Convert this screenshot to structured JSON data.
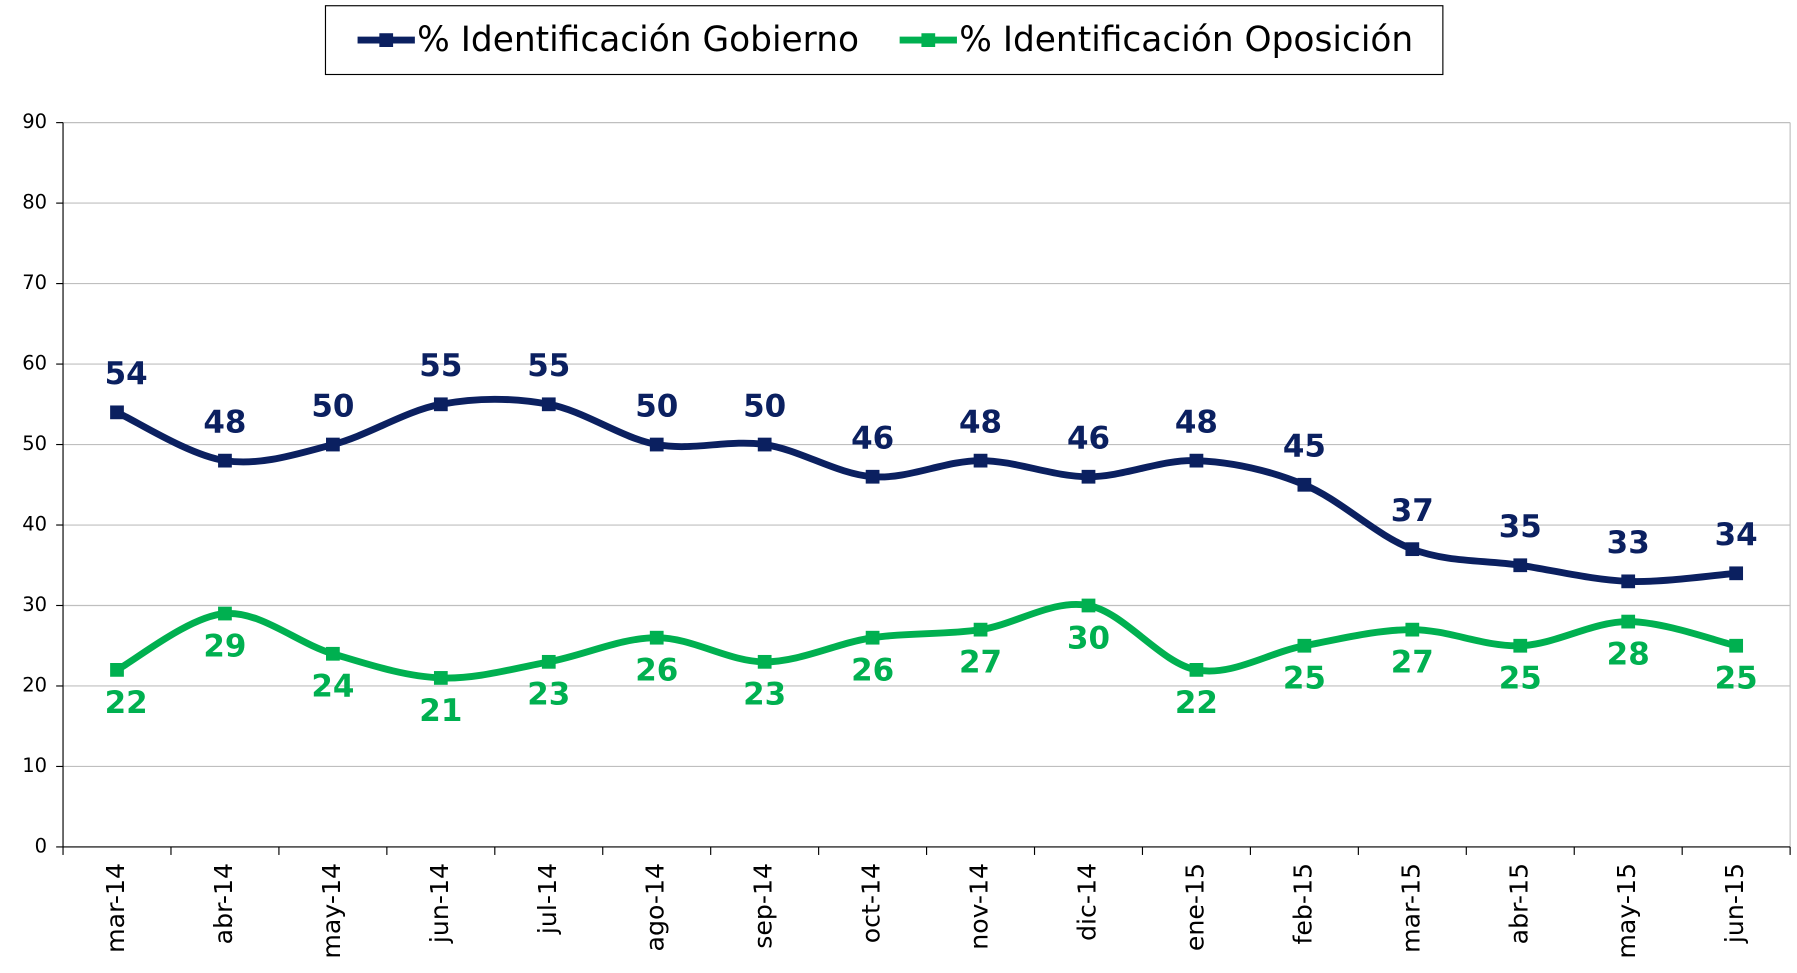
{
  "chart_data": {
    "type": "line",
    "categories": [
      "mar-14",
      "abr-14",
      "may-14",
      "jun-14",
      "jul-14",
      "ago-14",
      "sep-14",
      "oct-14",
      "nov-14",
      "dic-14",
      "ene-15",
      "feb-15",
      "mar-15",
      "abr-15",
      "may-15",
      "jun-15"
    ],
    "series": [
      {
        "name": "% Identificación Gobierno",
        "color": "#0b2060",
        "values": [
          54,
          48,
          50,
          55,
          55,
          50,
          50,
          46,
          48,
          46,
          48,
          45,
          37,
          35,
          33,
          34
        ]
      },
      {
        "name": "% Identificación Oposición",
        "color": "#00b050",
        "values": [
          22,
          29,
          24,
          21,
          23,
          26,
          23,
          26,
          27,
          30,
          22,
          25,
          27,
          25,
          28,
          25
        ]
      }
    ],
    "ylim": [
      0,
      90
    ],
    "yticks": [
      0,
      10,
      20,
      30,
      40,
      50,
      60,
      70,
      80,
      90
    ],
    "grid": true,
    "legend": "top"
  }
}
